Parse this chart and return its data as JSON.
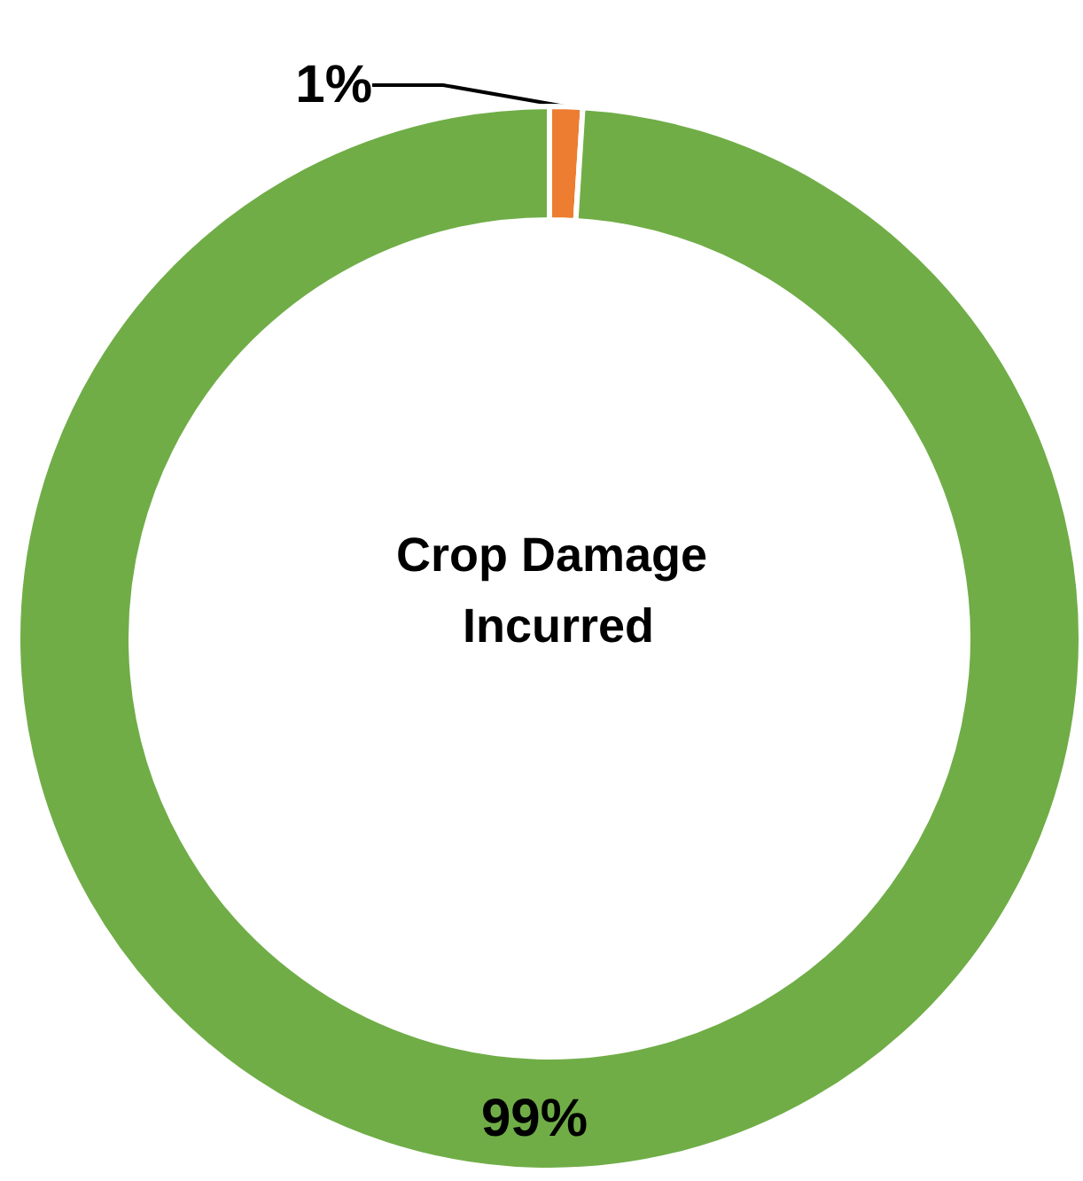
{
  "chart_data": {
    "type": "donut",
    "title": "Crop Damage Incurred",
    "categories": [
      null,
      null
    ],
    "values": [
      1,
      99
    ],
    "colors": [
      "#ed7d31",
      "#70ad47"
    ],
    "value_labels": [
      "1%",
      "99%"
    ]
  }
}
